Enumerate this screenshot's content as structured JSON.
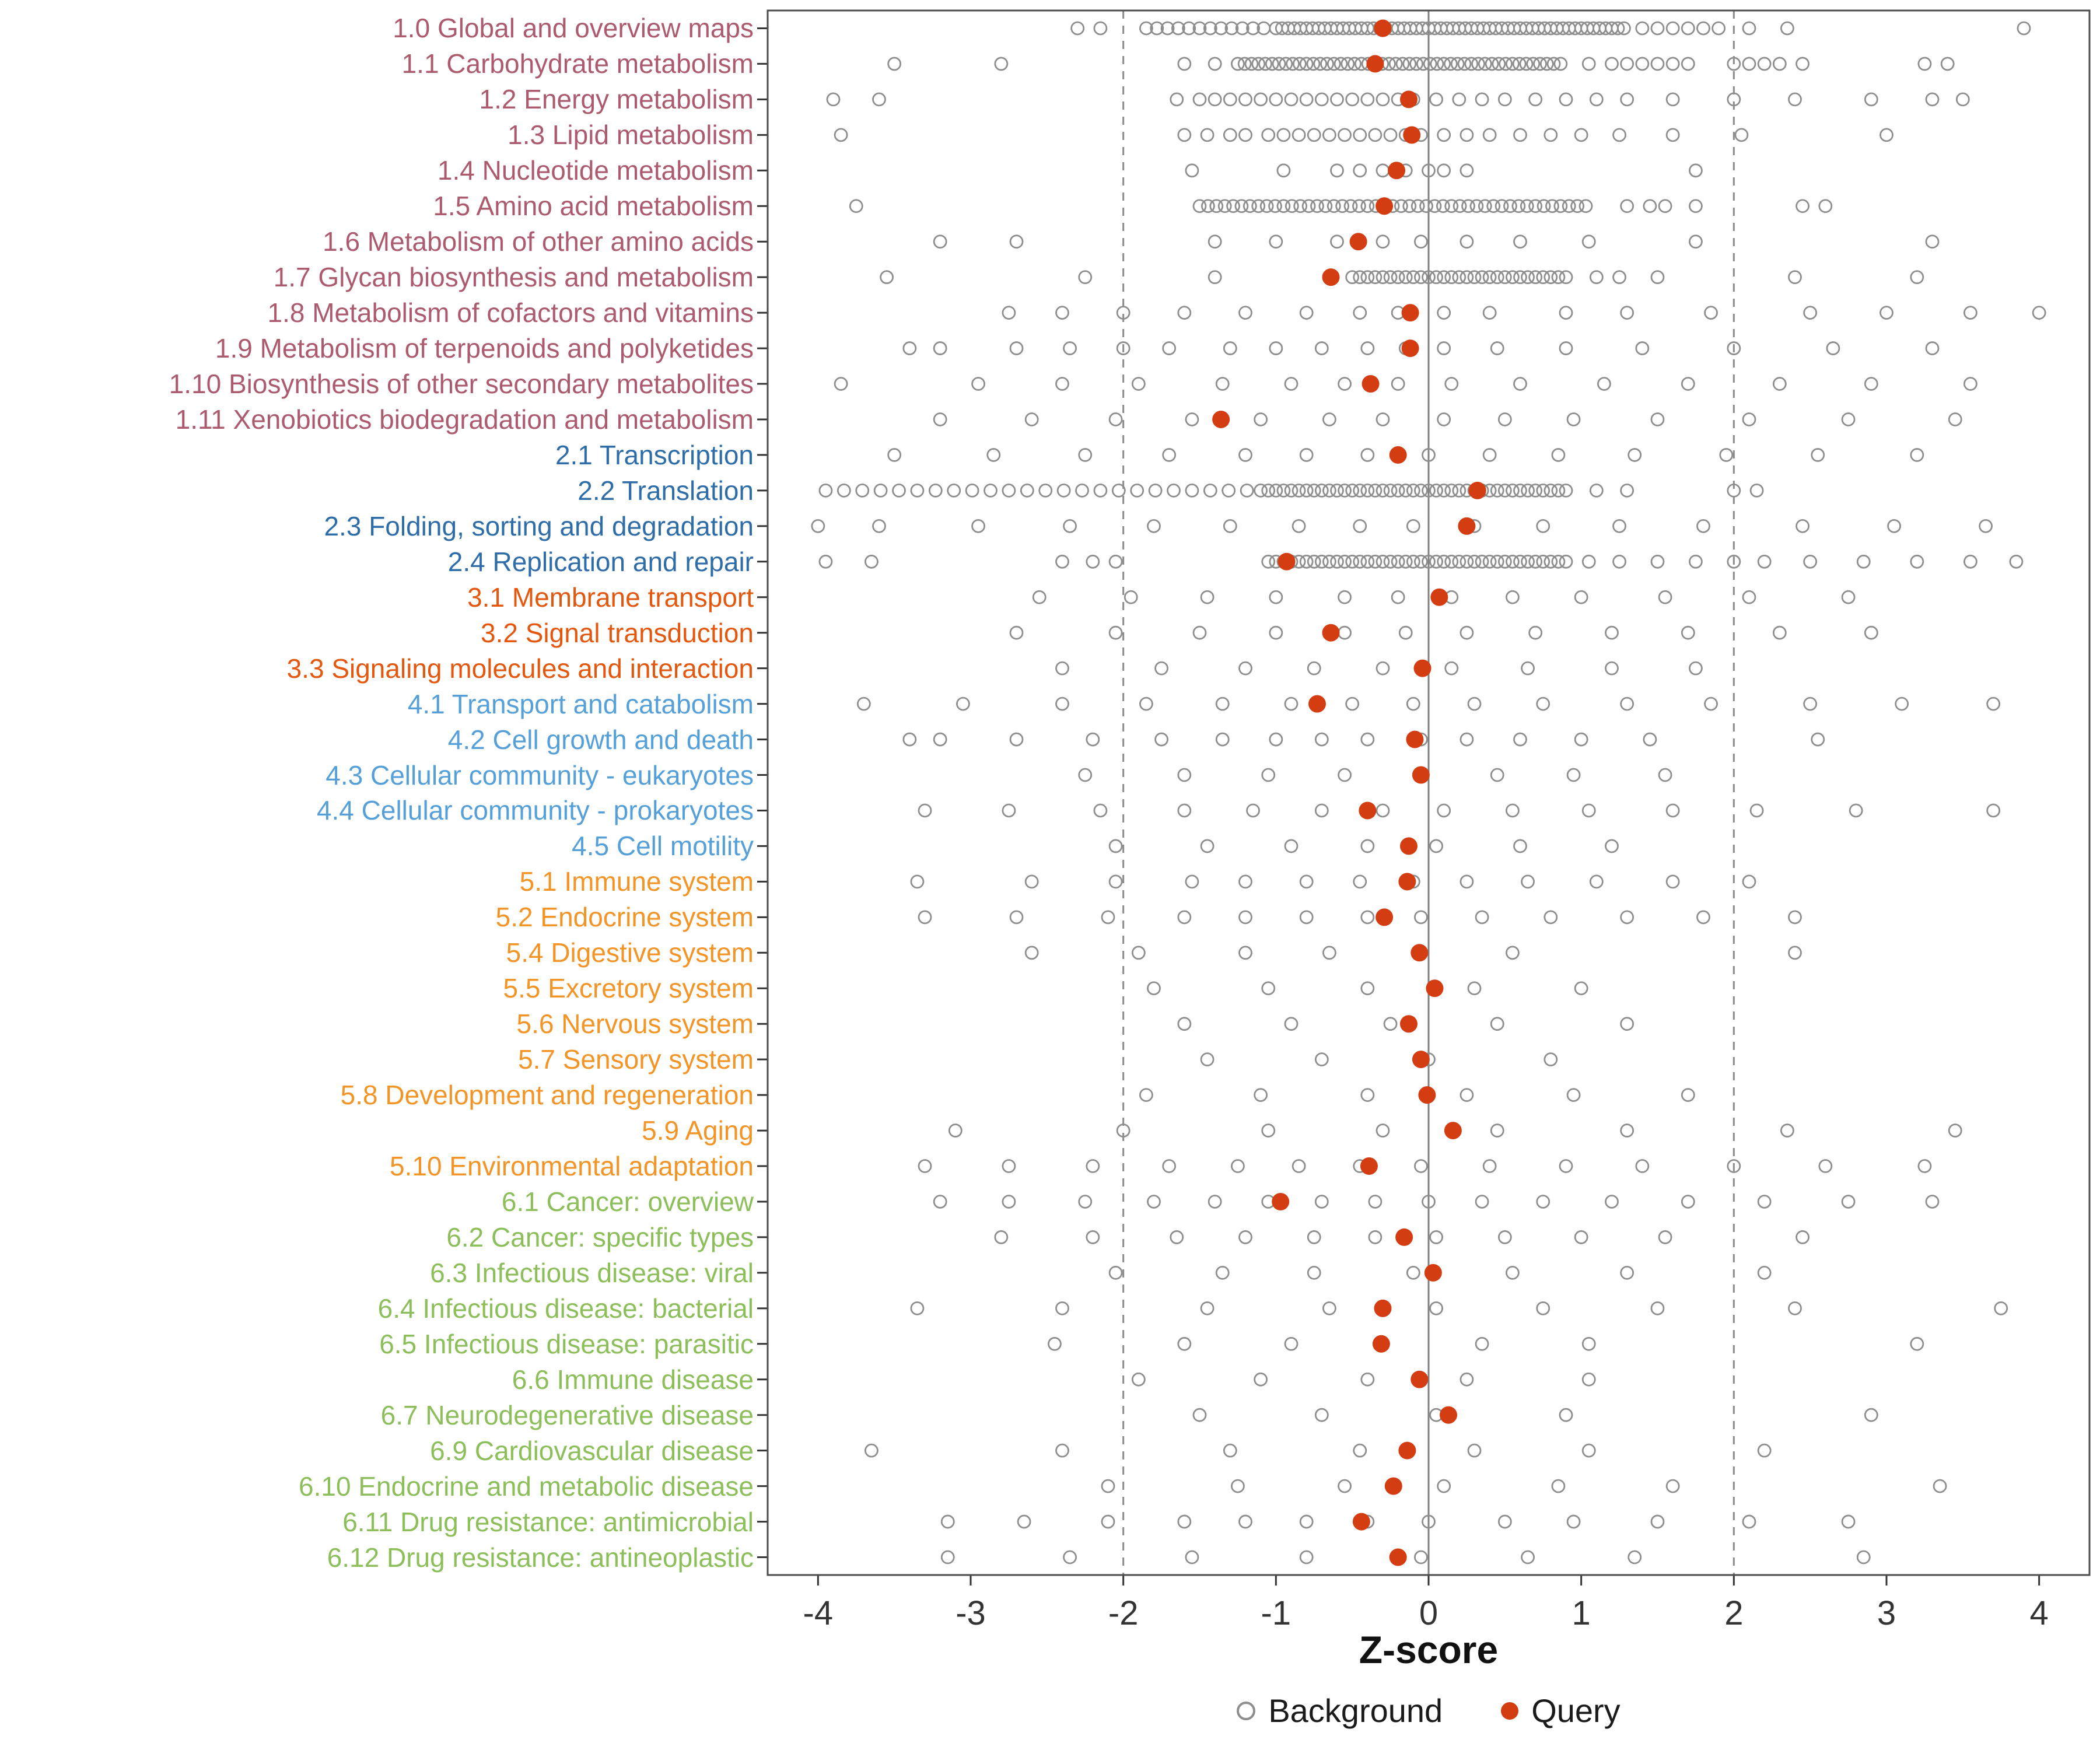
{
  "colors": {
    "query": "#D43D12",
    "background_stroke": "#8E8E8E",
    "ref_dashed": "#8A8A8A",
    "ref_solid": "#7F7F7F",
    "panel_border": "#4D4D4D",
    "tick_text": "#333333",
    "groups": {
      "1": "#AC5A6E",
      "2": "#2E6DA8",
      "3": "#E4570E",
      "4": "#55A0D8",
      "5": "#F39426",
      "6": "#8CBE5A"
    }
  },
  "chart_data": {
    "type": "scatter",
    "title": "",
    "xlabel": "Z-score",
    "ylabel": "",
    "xlim": [
      -4.33,
      4.33
    ],
    "x_ticks": [
      -4,
      -3,
      -2,
      -1,
      0,
      1,
      2,
      3,
      4
    ],
    "grid": false,
    "reference_lines": {
      "solid_x": 0,
      "dashed_x": [
        -2,
        2
      ]
    },
    "legend": {
      "position": "bottom",
      "entries": [
        {
          "label": "Background",
          "marker": "open-gray-circle"
        },
        {
          "label": "Query",
          "marker": "filled-red-circle"
        }
      ]
    },
    "rows": [
      {
        "label": "1.0 Global and overview maps",
        "group": "1",
        "query": -0.3,
        "bands": [
          [
            -1.85,
            -1.05,
            0.07
          ],
          [
            -1.0,
            1.3,
            0.04
          ]
        ],
        "background": [
          -2.3,
          -2.15,
          1.4,
          1.5,
          1.6,
          1.7,
          1.8,
          1.9,
          2.1,
          2.35,
          3.9
        ]
      },
      {
        "label": "1.1 Carbohydrate metabolism",
        "group": "1",
        "query": -0.35,
        "bands": [
          [
            -1.25,
            0.9,
            0.045
          ]
        ],
        "background": [
          -3.5,
          -2.8,
          -1.6,
          -1.4,
          1.05,
          1.2,
          1.3,
          1.4,
          1.5,
          1.6,
          1.7,
          2.0,
          2.1,
          2.2,
          2.3,
          2.45,
          3.25,
          3.4
        ]
      },
      {
        "label": "1.2 Energy metabolism",
        "group": "1",
        "query": -0.13,
        "background": [
          -3.9,
          -3.6,
          -1.65,
          -1.5,
          -1.4,
          -1.3,
          -1.2,
          -1.1,
          -1.0,
          -0.9,
          -0.8,
          -0.7,
          -0.6,
          -0.5,
          -0.4,
          -0.3,
          -0.2,
          -0.1,
          0.05,
          0.2,
          0.35,
          0.5,
          0.7,
          0.9,
          1.1,
          1.3,
          1.6,
          2.0,
          2.4,
          2.9,
          3.3,
          3.5
        ]
      },
      {
        "label": "1.3 Lipid metabolism",
        "group": "1",
        "query": -0.11,
        "background": [
          -3.85,
          -1.6,
          -1.45,
          -1.3,
          -1.2,
          -1.05,
          -0.95,
          -0.85,
          -0.75,
          -0.65,
          -0.55,
          -0.45,
          -0.35,
          -0.25,
          -0.15,
          -0.05,
          0.1,
          0.25,
          0.4,
          0.6,
          0.8,
          1.0,
          1.25,
          1.6,
          2.05,
          3.0
        ]
      },
      {
        "label": "1.4 Nucleotide metabolism",
        "group": "1",
        "query": -0.21,
        "background": [
          -1.55,
          -0.95,
          -0.6,
          -0.45,
          -0.3,
          -0.15,
          0.0,
          0.1,
          0.25,
          1.75
        ]
      },
      {
        "label": "1.5 Amino acid metabolism",
        "group": "1",
        "query": -0.29,
        "bands": [
          [
            -1.5,
            1.05,
            0.055
          ]
        ],
        "background": [
          -3.75,
          1.3,
          1.45,
          1.55,
          1.75,
          2.45,
          2.6
        ]
      },
      {
        "label": "1.6 Metabolism of other amino acids",
        "group": "1",
        "query": -0.46,
        "background": [
          -3.2,
          -2.7,
          -1.4,
          -1.0,
          -0.6,
          -0.3,
          -0.05,
          0.25,
          0.6,
          1.05,
          1.75,
          3.3
        ]
      },
      {
        "label": "1.7 Glycan biosynthesis and metabolism",
        "group": "1",
        "query": -0.64,
        "bands": [
          [
            -0.5,
            0.9,
            0.05
          ]
        ],
        "background": [
          -3.55,
          -2.25,
          -1.4,
          1.1,
          1.25,
          1.5,
          2.4,
          3.2
        ]
      },
      {
        "label": "1.8 Metabolism of cofactors and vitamins",
        "group": "1",
        "query": -0.12,
        "background": [
          -2.75,
          -2.4,
          -2.0,
          -1.6,
          -1.2,
          -0.8,
          -0.45,
          -0.2,
          0.1,
          0.4,
          0.9,
          1.3,
          1.85,
          2.5,
          3.0,
          3.55,
          4.0
        ]
      },
      {
        "label": "1.9 Metabolism of terpenoids and polyketides",
        "group": "1",
        "query": -0.12,
        "background": [
          -3.4,
          -3.2,
          -2.7,
          -2.35,
          -2.0,
          -1.7,
          -1.3,
          -1.0,
          -0.7,
          -0.4,
          -0.15,
          0.1,
          0.45,
          0.9,
          1.4,
          2.0,
          2.65,
          3.3
        ]
      },
      {
        "label": "1.10 Biosynthesis of other secondary metabolites",
        "group": "1",
        "query": -0.38,
        "background": [
          -3.85,
          -2.95,
          -2.4,
          -1.9,
          -1.35,
          -0.9,
          -0.55,
          -0.2,
          0.15,
          0.6,
          1.15,
          1.7,
          2.3,
          2.9,
          3.55
        ]
      },
      {
        "label": "1.11 Xenobiotics biodegradation and metabolism",
        "group": "1",
        "query": -1.36,
        "background": [
          -3.2,
          -2.6,
          -2.05,
          -1.55,
          -1.1,
          -0.65,
          -0.3,
          0.1,
          0.5,
          0.95,
          1.5,
          2.1,
          2.75,
          3.45
        ]
      },
      {
        "label": "2.1 Transcription",
        "group": "2",
        "query": -0.2,
        "background": [
          -3.5,
          -2.85,
          -2.25,
          -1.7,
          -1.2,
          -0.8,
          -0.4,
          0.0,
          0.4,
          0.85,
          1.35,
          1.95,
          2.55,
          3.2
        ]
      },
      {
        "label": "2.2 Translation",
        "group": "2",
        "query": 0.32,
        "bands": [
          [
            -3.95,
            -1.15,
            0.12
          ],
          [
            -1.1,
            0.9,
            0.05
          ]
        ],
        "background": [
          1.1,
          1.3,
          2.0,
          2.15
        ]
      },
      {
        "label": "2.3 Folding, sorting and degradation",
        "group": "2",
        "query": 0.25,
        "background": [
          -4.0,
          -3.6,
          -2.95,
          -2.35,
          -1.8,
          -1.3,
          -0.85,
          -0.45,
          -0.1,
          0.3,
          0.75,
          1.25,
          1.8,
          2.45,
          3.05,
          3.65
        ]
      },
      {
        "label": "2.4 Replication and repair",
        "group": "2",
        "query": -0.93,
        "bands": [
          [
            -1.05,
            0.9,
            0.05
          ]
        ],
        "background": [
          -3.95,
          -3.65,
          -2.4,
          -2.2,
          -2.05,
          1.05,
          1.25,
          1.5,
          1.75,
          2.0,
          2.2,
          2.5,
          2.85,
          3.2,
          3.55,
          3.85
        ]
      },
      {
        "label": "3.1 Membrane transport",
        "group": "3",
        "query": 0.07,
        "background": [
          -2.55,
          -1.95,
          -1.45,
          -1.0,
          -0.55,
          -0.2,
          0.15,
          0.55,
          1.0,
          1.55,
          2.1,
          2.75
        ]
      },
      {
        "label": "3.2 Signal transduction",
        "group": "3",
        "query": -0.64,
        "background": [
          -2.7,
          -2.05,
          -1.5,
          -1.0,
          -0.55,
          -0.15,
          0.25,
          0.7,
          1.2,
          1.7,
          2.3,
          2.9
        ]
      },
      {
        "label": "3.3 Signaling molecules and interaction",
        "group": "3",
        "query": -0.04,
        "background": [
          -2.4,
          -1.75,
          -1.2,
          -0.75,
          -0.3,
          0.15,
          0.65,
          1.2,
          1.75
        ]
      },
      {
        "label": "4.1 Transport and catabolism",
        "group": "4",
        "query": -0.73,
        "background": [
          -3.7,
          -3.05,
          -2.4,
          -1.85,
          -1.35,
          -0.9,
          -0.5,
          -0.1,
          0.3,
          0.75,
          1.3,
          1.85,
          2.5,
          3.1,
          3.7
        ]
      },
      {
        "label": "4.2 Cell growth and death",
        "group": "4",
        "query": -0.09,
        "background": [
          -3.4,
          -3.2,
          -2.7,
          -2.2,
          -1.75,
          -1.35,
          -1.0,
          -0.7,
          -0.4,
          -0.05,
          0.25,
          0.6,
          1.0,
          1.45,
          2.55
        ]
      },
      {
        "label": "4.3 Cellular community - eukaryotes",
        "group": "4",
        "query": -0.05,
        "background": [
          -2.25,
          -1.6,
          -1.05,
          -0.55,
          -0.05,
          0.45,
          0.95,
          1.55
        ]
      },
      {
        "label": "4.4 Cellular community - prokaryotes",
        "group": "4",
        "query": -0.4,
        "background": [
          -3.3,
          -2.75,
          -2.15,
          -1.6,
          -1.15,
          -0.7,
          -0.3,
          0.1,
          0.55,
          1.05,
          1.6,
          2.15,
          2.8,
          3.7
        ]
      },
      {
        "label": "4.5 Cell motility",
        "group": "4",
        "query": -0.13,
        "background": [
          -2.05,
          -1.45,
          -0.9,
          -0.4,
          0.05,
          0.6,
          1.2
        ]
      },
      {
        "label": "5.1 Immune system",
        "group": "5",
        "query": -0.14,
        "background": [
          -3.35,
          -2.6,
          -2.05,
          -1.55,
          -1.2,
          -0.8,
          -0.45,
          -0.1,
          0.25,
          0.65,
          1.1,
          1.6,
          2.1
        ]
      },
      {
        "label": "5.2 Endocrine system",
        "group": "5",
        "query": -0.29,
        "background": [
          -3.3,
          -2.7,
          -2.1,
          -1.6,
          -1.2,
          -0.8,
          -0.4,
          -0.05,
          0.35,
          0.8,
          1.3,
          1.8,
          2.4
        ]
      },
      {
        "label": "5.4 Digestive system",
        "group": "5",
        "query": -0.06,
        "background": [
          -2.6,
          -1.9,
          -1.2,
          -0.65,
          -0.05,
          0.55,
          2.4
        ]
      },
      {
        "label": "5.5 Excretory system",
        "group": "5",
        "query": 0.04,
        "background": [
          -1.8,
          -1.05,
          -0.4,
          0.3,
          1.0
        ]
      },
      {
        "label": "5.6 Nervous system",
        "group": "5",
        "query": -0.13,
        "background": [
          -1.6,
          -0.9,
          -0.25,
          0.45,
          1.3
        ]
      },
      {
        "label": "5.7 Sensory system",
        "group": "5",
        "query": -0.05,
        "background": [
          -1.45,
          -0.7,
          0.0,
          0.8
        ]
      },
      {
        "label": "5.8 Development and regeneration",
        "group": "5",
        "query": -0.01,
        "background": [
          -1.85,
          -1.1,
          -0.4,
          0.25,
          0.95,
          1.7
        ]
      },
      {
        "label": "5.9 Aging",
        "group": "5",
        "query": 0.16,
        "background": [
          -3.1,
          -2.0,
          -1.05,
          -0.3,
          0.45,
          1.3,
          2.35,
          3.45
        ]
      },
      {
        "label": "5.10 Environmental adaptation",
        "group": "5",
        "query": -0.39,
        "background": [
          -3.3,
          -2.75,
          -2.2,
          -1.7,
          -1.25,
          -0.85,
          -0.45,
          -0.05,
          0.4,
          0.9,
          1.4,
          2.0,
          2.6,
          3.25
        ]
      },
      {
        "label": "6.1 Cancer: overview",
        "group": "6",
        "query": -0.97,
        "background": [
          -3.2,
          -2.75,
          -2.25,
          -1.8,
          -1.4,
          -1.05,
          -0.7,
          -0.35,
          0.0,
          0.35,
          0.75,
          1.2,
          1.7,
          2.2,
          2.75,
          3.3
        ]
      },
      {
        "label": "6.2 Cancer: specific types",
        "group": "6",
        "query": -0.16,
        "background": [
          -2.8,
          -2.2,
          -1.65,
          -1.2,
          -0.75,
          -0.35,
          0.05,
          0.5,
          1.0,
          1.55,
          2.45
        ]
      },
      {
        "label": "6.3 Infectious disease: viral",
        "group": "6",
        "query": 0.03,
        "background": [
          -2.05,
          -1.35,
          -0.75,
          -0.1,
          0.55,
          1.3,
          2.2
        ]
      },
      {
        "label": "6.4 Infectious disease: bacterial",
        "group": "6",
        "query": -0.3,
        "background": [
          -3.35,
          -2.4,
          -1.45,
          -0.65,
          0.05,
          0.75,
          1.5,
          2.4,
          3.75
        ]
      },
      {
        "label": "6.5 Infectious disease: parasitic",
        "group": "6",
        "query": -0.31,
        "background": [
          -2.45,
          -1.6,
          -0.9,
          -0.3,
          0.35,
          1.05,
          3.2
        ]
      },
      {
        "label": "6.6 Immune disease",
        "group": "6",
        "query": -0.06,
        "background": [
          -1.9,
          -1.1,
          -0.4,
          0.25,
          1.05
        ]
      },
      {
        "label": "6.7 Neurodegenerative disease",
        "group": "6",
        "query": 0.13,
        "background": [
          -1.5,
          -0.7,
          0.05,
          0.9,
          2.9
        ]
      },
      {
        "label": "6.9 Cardiovascular disease",
        "group": "6",
        "query": -0.14,
        "background": [
          -3.65,
          -2.4,
          -1.3,
          -0.45,
          0.3,
          1.05,
          2.2
        ]
      },
      {
        "label": "6.10 Endocrine and metabolic disease",
        "group": "6",
        "query": -0.23,
        "background": [
          -2.1,
          -1.25,
          -0.55,
          0.1,
          0.85,
          1.6,
          3.35
        ]
      },
      {
        "label": "6.11 Drug resistance: antimicrobial",
        "group": "6",
        "query": -0.44,
        "background": [
          -3.15,
          -2.65,
          -2.1,
          -1.6,
          -1.2,
          -0.8,
          -0.4,
          0.0,
          0.5,
          0.95,
          1.5,
          2.1,
          2.75
        ]
      },
      {
        "label": "6.12 Drug resistance: antineoplastic",
        "group": "6",
        "query": -0.2,
        "background": [
          -3.15,
          -2.35,
          -1.55,
          -0.8,
          -0.05,
          0.65,
          1.35,
          2.85
        ]
      }
    ]
  }
}
